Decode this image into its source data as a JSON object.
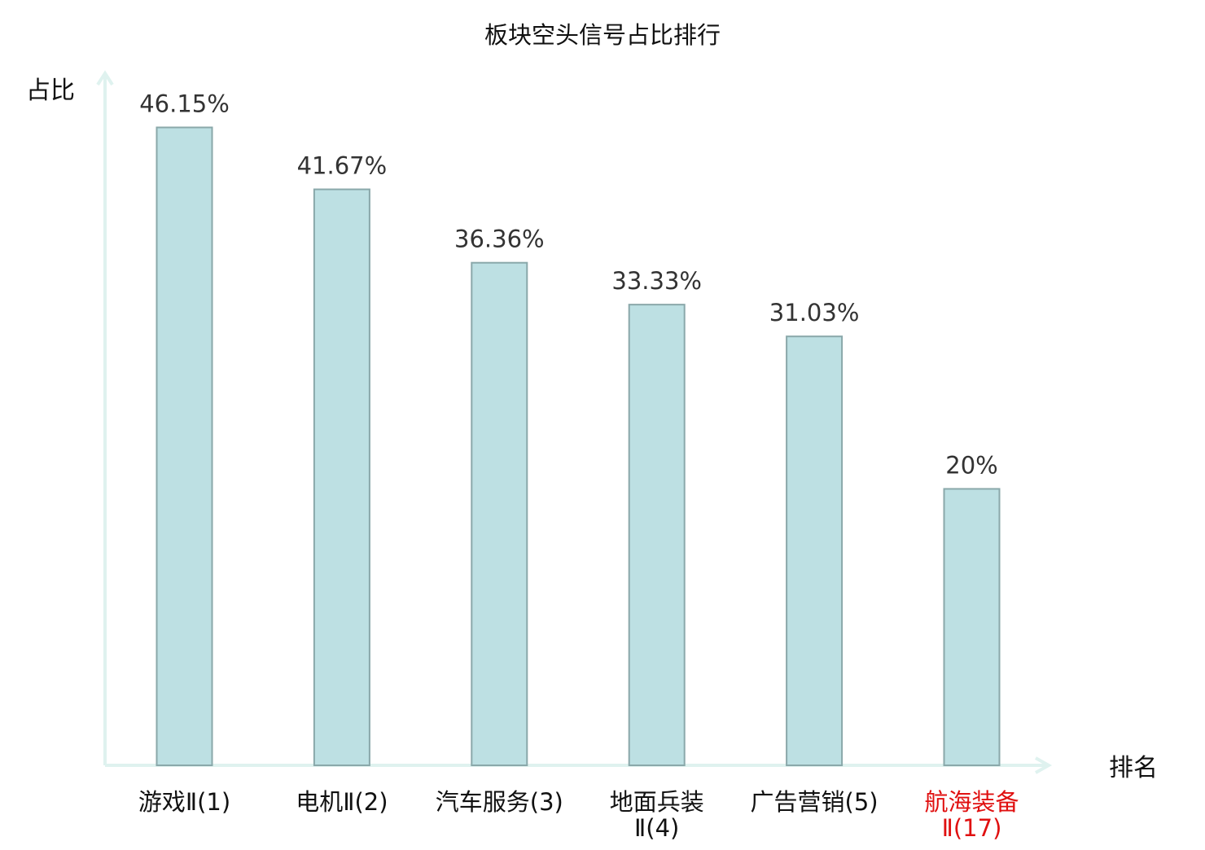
{
  "chart_data": {
    "type": "bar",
    "title": "板块空头信号占比排行",
    "ylabel": "占比",
    "xlabel": "排名",
    "categories": [
      {
        "name": "游戏Ⅱ",
        "rank": "(1)"
      },
      {
        "name": "电机Ⅱ",
        "rank": "(2)"
      },
      {
        "name": "汽车服务",
        "rank": "(3)"
      },
      {
        "name": "地面兵装",
        "rank": "Ⅱ(4)"
      },
      {
        "name": "广告营销",
        "rank": "(5)"
      },
      {
        "name": "航海装备",
        "rank": "Ⅱ(17)"
      }
    ],
    "values": [
      46.15,
      41.67,
      36.36,
      33.33,
      31.03,
      20
    ],
    "value_labels": [
      "46.15%",
      "41.67%",
      "36.36%",
      "33.33%",
      "31.03%",
      "20%"
    ],
    "ylim": [
      0,
      46.15
    ],
    "grid": false,
    "legend": "none",
    "highlight_index": 5,
    "colors": {
      "bar_fill": "#bde0e3",
      "bar_stroke": "#8aa8aa",
      "axis": "#dff2ef",
      "label_text": "#333333",
      "category_text": "#111111",
      "highlight_text": "#e01010"
    }
  }
}
